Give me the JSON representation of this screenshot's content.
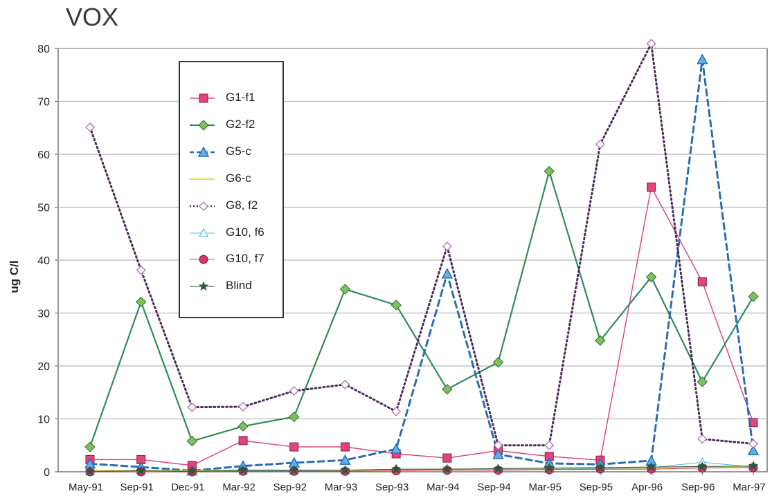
{
  "chart_data": {
    "type": "line",
    "title": "VOX",
    "ylabel": "ug C/l",
    "xlabel": "",
    "ylim": [
      0,
      80
    ],
    "y_ticks": [
      "0",
      "10",
      "20",
      "30",
      "40",
      "50",
      "60",
      "70",
      "80"
    ],
    "grid": true,
    "legend_position": "top-left",
    "categories": [
      "May-91",
      "Sep-91",
      "Dec-91",
      "Mar-92",
      "Sep-92",
      "Mar-93",
      "Sep-93",
      "Mar-94",
      "Sep-94",
      "Mar-95",
      "Sep-95",
      "Apr-96",
      "Sep-96",
      "Mar-97"
    ],
    "series": [
      {
        "name": "G1-f1",
        "color": "#e0457b",
        "marker": "square",
        "dash": "solid",
        "width": 1.5,
        "values": [
          2.3,
          2.3,
          1.2,
          5.9,
          4.7,
          4.7,
          3.4,
          2.6,
          4.0,
          2.9,
          2.2,
          53.8,
          35.9,
          9.3
        ]
      },
      {
        "name": "G2-f2",
        "color": "#2e8b57",
        "marker": "diamond",
        "dash": "solid",
        "width": 2.2,
        "values": [
          4.7,
          32.1,
          5.8,
          8.6,
          10.4,
          34.5,
          31.5,
          15.6,
          20.7,
          56.8,
          24.8,
          36.8,
          17.0,
          33.1
        ]
      },
      {
        "name": "G5-c",
        "color": "#2a6db5",
        "marker": "triangle",
        "dash": "dashed",
        "width": 3,
        "values": [
          1.5,
          0.9,
          0.2,
          1.1,
          1.7,
          2.2,
          4.3,
          37.4,
          3.3,
          1.6,
          1.4,
          2.1,
          77.9,
          4.0
        ]
      },
      {
        "name": "G6-c",
        "color": "#e8df3a",
        "marker": "none",
        "dash": "solid",
        "width": 2,
        "values": [
          0.2,
          0.2,
          0.2,
          0.3,
          0.3,
          0.3,
          0.4,
          0.5,
          0.5,
          0.6,
          0.6,
          0.7,
          0.8,
          0.9
        ]
      },
      {
        "name": "G8, f2",
        "color": "#4a2a5a",
        "marker": "open-diamond",
        "dash": "dotted",
        "width": 3,
        "values": [
          65.1,
          38.1,
          12.2,
          12.3,
          15.3,
          16.5,
          11.4,
          42.6,
          5.0,
          5.0,
          61.9,
          80.9,
          6.2,
          5.3
        ]
      },
      {
        "name": "G10, f6",
        "color": "#4fb8d8",
        "marker": "open-triangle",
        "dash": "solid",
        "width": 1,
        "values": [
          0.1,
          0.1,
          0.1,
          0.2,
          0.2,
          0.3,
          0.5,
          0.5,
          0.5,
          0.5,
          0.6,
          0.8,
          1.8,
          0.9
        ]
      },
      {
        "name": "G10, f7",
        "color": "#d4376b",
        "marker": "circle",
        "dash": "solid",
        "width": 1,
        "values": [
          0.0,
          0.0,
          0.0,
          0.1,
          0.1,
          0.1,
          0.2,
          0.3,
          0.3,
          0.4,
          0.5,
          0.5,
          0.7,
          0.8
        ]
      },
      {
        "name": "Blind",
        "color": "#2a5a3a",
        "marker": "star",
        "dash": "solid",
        "width": 1,
        "values": [
          0.1,
          0.2,
          0.1,
          0.3,
          0.3,
          0.3,
          0.5,
          0.5,
          0.6,
          0.7,
          0.8,
          0.9,
          1.0,
          1.1
        ]
      }
    ]
  }
}
